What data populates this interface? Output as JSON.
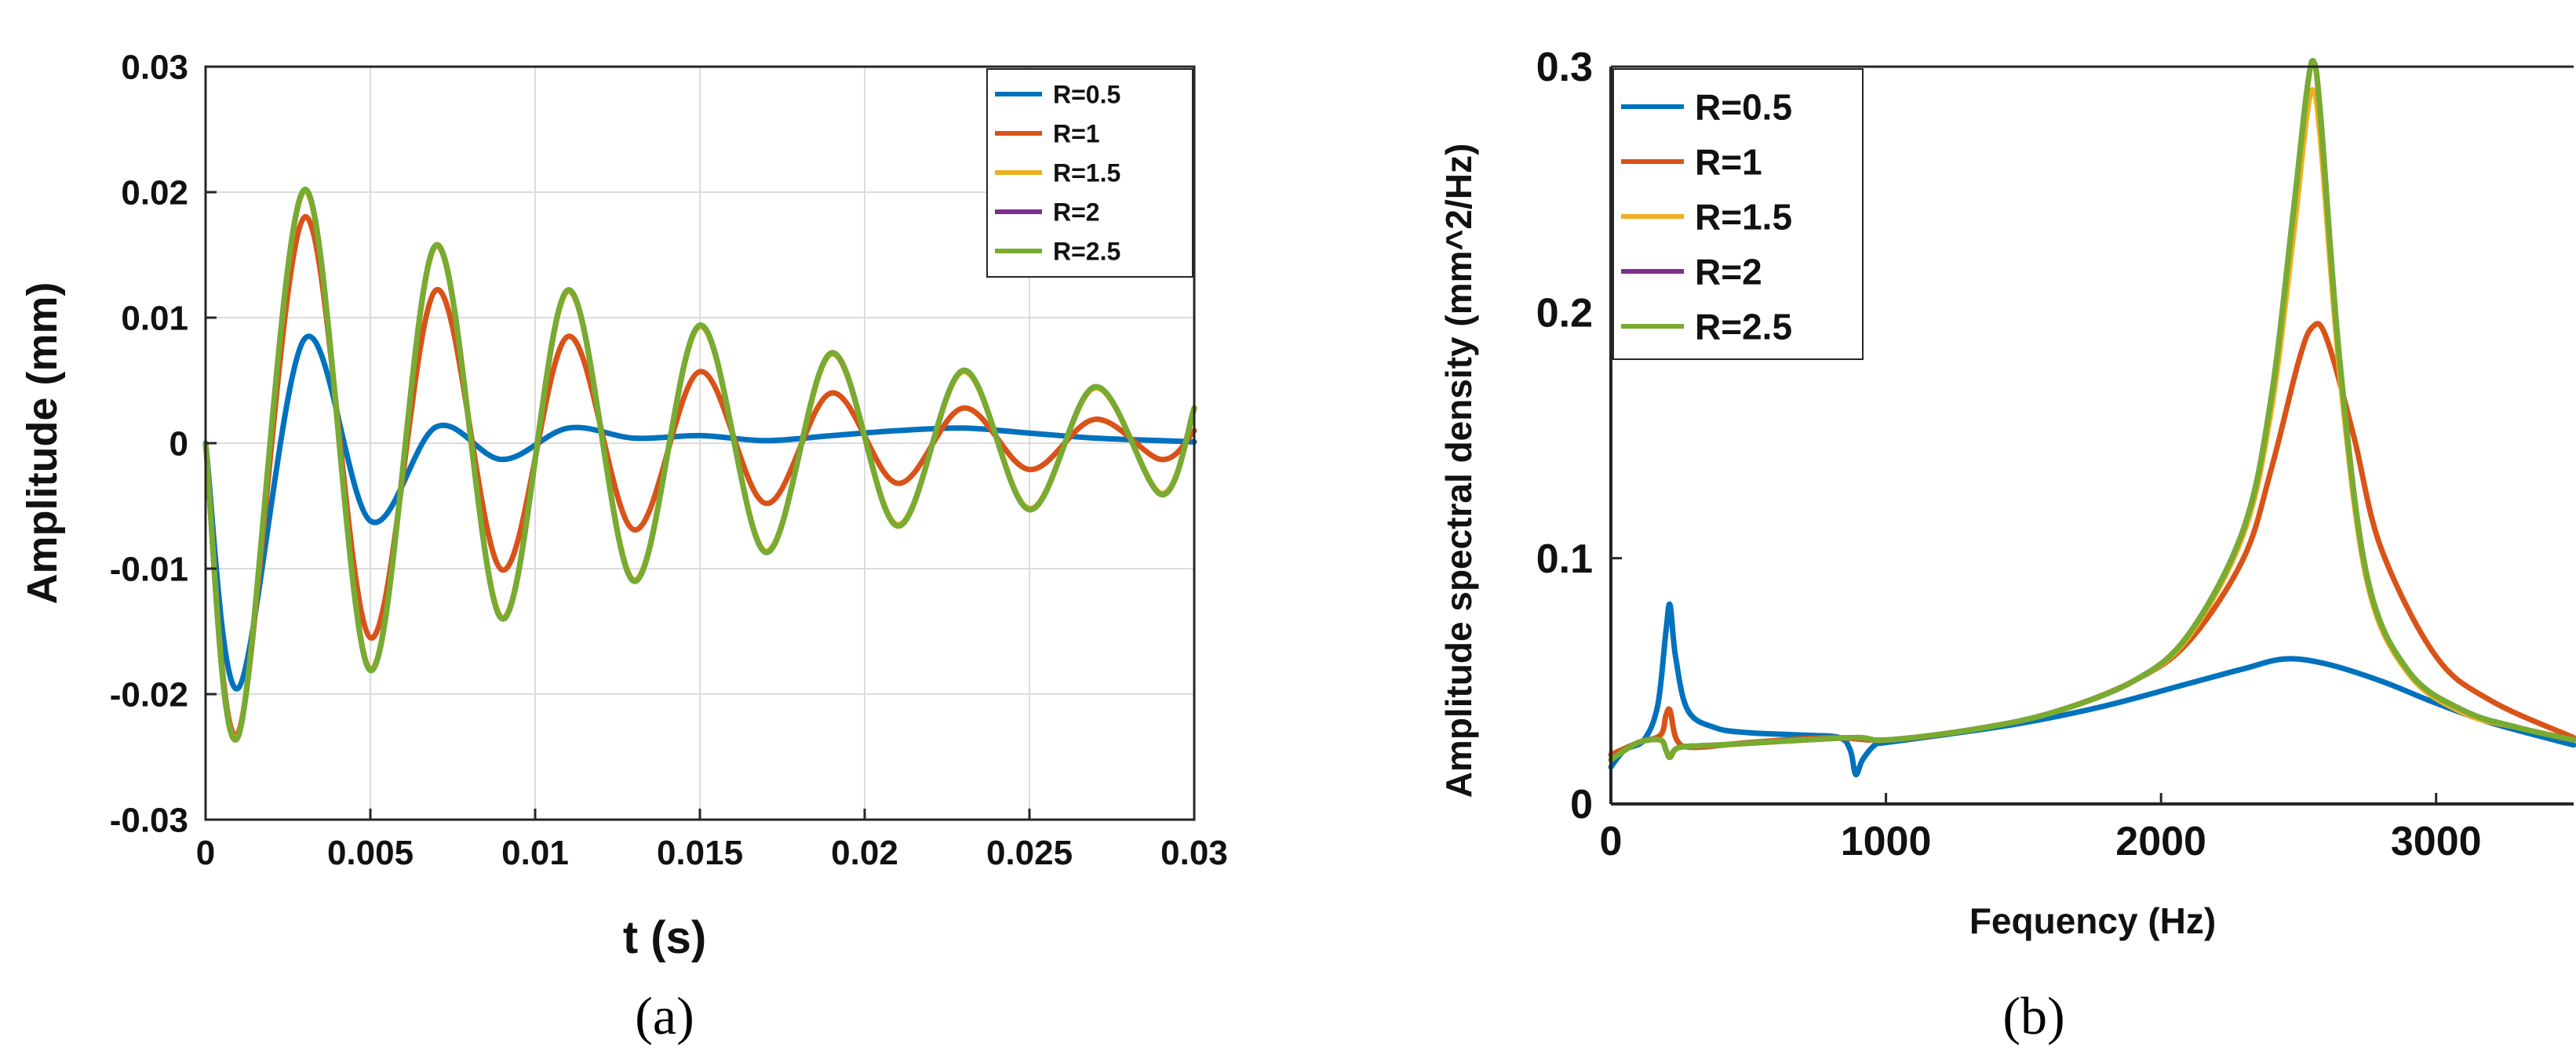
{
  "chart_data": [
    {
      "type": "line",
      "panel_label": "(a)",
      "title": "",
      "xlabel": "t  (s)",
      "ylabel": "Amplitude  (mm)",
      "xlim": [
        0,
        0.03
      ],
      "ylim": [
        -0.03,
        0.03
      ],
      "xticks": [
        0,
        0.005,
        0.01,
        0.015,
        0.02,
        0.025,
        0.03
      ],
      "xtick_labels": [
        "0",
        "0.005",
        "0.01",
        "0.015",
        "0.02",
        "0.025",
        "0.03"
      ],
      "yticks": [
        -0.03,
        -0.02,
        -0.01,
        0,
        0.01,
        0.02,
        0.03
      ],
      "ytick_labels": [
        "-0.03",
        "-0.02",
        "-0.01",
        "0",
        "0.01",
        "0.02",
        "0.03"
      ],
      "grid": true,
      "legend_position": "top-right",
      "series": [
        {
          "name": "R=0.5",
          "color": "#0072BD",
          "x": [
            0,
            0.001,
            0.003,
            0.005,
            0.007,
            0.009,
            0.011,
            0.013,
            0.015,
            0.017,
            0.019,
            0.021,
            0.023,
            0.025,
            0.027,
            0.029,
            0.03
          ],
          "y": [
            0,
            -0.0195,
            0.0083,
            -0.0062,
            0.0013,
            -0.0013,
            0.0012,
            0.0004,
            0.0006,
            0.0002,
            0.0006,
            0.001,
            0.0012,
            0.0008,
            0.0004,
            0.0002,
            0.0001
          ]
        },
        {
          "name": "R=1",
          "color": "#D95319",
          "x": [
            0,
            0.001,
            0.003,
            0.005,
            0.007,
            0.009,
            0.011,
            0.013,
            0.015,
            0.017,
            0.019,
            0.021,
            0.023,
            0.025,
            0.027,
            0.029,
            0.03
          ],
          "y": [
            0,
            -0.023,
            0.018,
            -0.0155,
            0.0122,
            -0.0101,
            0.0085,
            -0.0069,
            0.0057,
            -0.0048,
            0.004,
            -0.0032,
            0.0028,
            -0.0021,
            0.0019,
            -0.0013,
            0.001
          ]
        },
        {
          "name": "R=1.5",
          "color": "#EDB120",
          "x": [
            0,
            0.001,
            0.003,
            0.005,
            0.007,
            0.009,
            0.011,
            0.013,
            0.015,
            0.017,
            0.019,
            0.021,
            0.023,
            0.025,
            0.027,
            0.029,
            0.03
          ],
          "y": [
            0,
            -0.0232,
            0.0201,
            -0.018,
            0.0157,
            -0.0139,
            0.0121,
            -0.0109,
            0.0093,
            -0.0086,
            0.0071,
            -0.0065,
            0.0057,
            -0.0052,
            0.0044,
            -0.004,
            0.0027
          ]
        },
        {
          "name": "R=2",
          "color": "#7E2F8E",
          "x": [
            0,
            0.001,
            0.003,
            0.005,
            0.007,
            0.009,
            0.011,
            0.013,
            0.015,
            0.017,
            0.019,
            0.021,
            0.023,
            0.025,
            0.027,
            0.029,
            0.03
          ],
          "y": [
            0,
            -0.0233,
            0.0202,
            -0.0181,
            0.0158,
            -0.014,
            0.0122,
            -0.011,
            0.0094,
            -0.0087,
            0.0072,
            -0.0066,
            0.0058,
            -0.0053,
            0.0045,
            -0.0041,
            0.0028
          ]
        },
        {
          "name": "R=2.5",
          "color": "#77AC30",
          "x": [
            0,
            0.001,
            0.003,
            0.005,
            0.007,
            0.009,
            0.011,
            0.013,
            0.015,
            0.017,
            0.019,
            0.021,
            0.023,
            0.025,
            0.027,
            0.029,
            0.03
          ],
          "y": [
            0,
            -0.0233,
            0.0202,
            -0.0181,
            0.0158,
            -0.014,
            0.0122,
            -0.011,
            0.0094,
            -0.0087,
            0.0072,
            -0.0066,
            0.0058,
            -0.0053,
            0.0045,
            -0.0041,
            0.0028
          ]
        }
      ]
    },
    {
      "type": "line",
      "panel_label": "(b)",
      "title": "",
      "xlabel": "Fequency  (Hz)",
      "ylabel": "Amplitude spectral density  (mm^2/Hz)",
      "xlim": [
        0,
        3500
      ],
      "ylim": [
        0,
        0.3
      ],
      "xticks": [
        0,
        1000,
        2000,
        3000
      ],
      "xtick_labels": [
        "0",
        "1000",
        "2000",
        "3000"
      ],
      "yticks": [
        0,
        0.1,
        0.2,
        0.3
      ],
      "ytick_labels": [
        "0",
        "0.1",
        "0.2",
        "0.3"
      ],
      "grid": false,
      "legend_position": "top-left",
      "series": [
        {
          "name": "R=0.5",
          "color": "#0072BD",
          "x": [
            0,
            50,
            120,
            170,
            200,
            215,
            235,
            280,
            380,
            500,
            700,
            830,
            870,
            890,
            915,
            960,
            1000,
            1200,
            1500,
            1800,
            2100,
            2300,
            2450,
            2600,
            2800,
            3000,
            3200,
            3500
          ],
          "y": [
            0.015,
            0.022,
            0.026,
            0.04,
            0.07,
            0.081,
            0.06,
            0.038,
            0.031,
            0.029,
            0.028,
            0.027,
            0.022,
            0.012,
            0.018,
            0.024,
            0.025,
            0.028,
            0.033,
            0.04,
            0.049,
            0.055,
            0.059,
            0.057,
            0.05,
            0.041,
            0.033,
            0.024
          ]
        },
        {
          "name": "R=1",
          "color": "#D95319",
          "x": [
            0,
            100,
            180,
            200,
            215,
            240,
            300,
            500,
            800,
            1000,
            1300,
            1600,
            1900,
            2100,
            2300,
            2400,
            2500,
            2550,
            2600,
            2700,
            2800,
            3000,
            3200,
            3500
          ],
          "y": [
            0.02,
            0.025,
            0.028,
            0.036,
            0.038,
            0.026,
            0.023,
            0.025,
            0.027,
            0.026,
            0.03,
            0.037,
            0.05,
            0.066,
            0.1,
            0.136,
            0.18,
            0.194,
            0.19,
            0.15,
            0.104,
            0.06,
            0.042,
            0.027
          ]
        },
        {
          "name": "R=1.5",
          "color": "#EDB120",
          "x": [
            0,
            100,
            180,
            200,
            215,
            250,
            400,
            700,
            900,
            1000,
            1300,
            1600,
            1900,
            2100,
            2300,
            2400,
            2480,
            2530,
            2555,
            2580,
            2650,
            2750,
            2900,
            3100,
            3300,
            3500
          ],
          "y": [
            0.018,
            0.025,
            0.026,
            0.022,
            0.019,
            0.023,
            0.024,
            0.026,
            0.027,
            0.026,
            0.03,
            0.037,
            0.05,
            0.068,
            0.11,
            0.16,
            0.23,
            0.28,
            0.29,
            0.27,
            0.175,
            0.09,
            0.053,
            0.037,
            0.031,
            0.026
          ]
        },
        {
          "name": "R=2",
          "color": "#7E2F8E",
          "x": [
            0,
            100,
            180,
            200,
            215,
            250,
            400,
            700,
            900,
            1000,
            1300,
            1600,
            1900,
            2100,
            2300,
            2400,
            2480,
            2530,
            2555,
            2580,
            2650,
            2750,
            2900,
            3100,
            3300,
            3500
          ],
          "y": [
            0.018,
            0.025,
            0.026,
            0.022,
            0.019,
            0.023,
            0.024,
            0.026,
            0.027,
            0.026,
            0.03,
            0.037,
            0.05,
            0.069,
            0.112,
            0.165,
            0.24,
            0.29,
            0.302,
            0.28,
            0.18,
            0.092,
            0.054,
            0.038,
            0.031,
            0.026
          ]
        },
        {
          "name": "R=2.5",
          "color": "#77AC30",
          "x": [
            0,
            100,
            180,
            200,
            215,
            250,
            400,
            700,
            900,
            1000,
            1300,
            1600,
            1900,
            2100,
            2300,
            2400,
            2480,
            2530,
            2555,
            2580,
            2650,
            2750,
            2900,
            3100,
            3300,
            3500
          ],
          "y": [
            0.018,
            0.025,
            0.026,
            0.022,
            0.019,
            0.023,
            0.024,
            0.026,
            0.027,
            0.026,
            0.03,
            0.037,
            0.05,
            0.069,
            0.112,
            0.165,
            0.24,
            0.29,
            0.302,
            0.28,
            0.18,
            0.092,
            0.054,
            0.038,
            0.031,
            0.026
          ]
        }
      ]
    }
  ]
}
